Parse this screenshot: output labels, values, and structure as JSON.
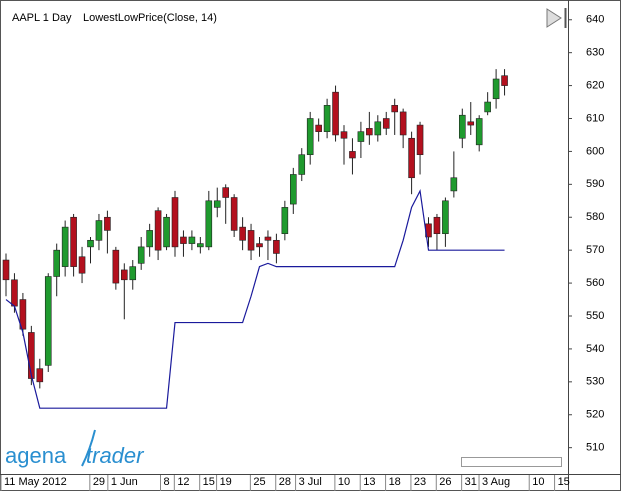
{
  "chart_data": {
    "type": "candlestick",
    "title": "AAPL 1 Day",
    "categories": [
      "11 May 2012",
      null,
      null,
      null,
      null,
      null,
      null,
      null,
      null,
      null,
      null,
      "29",
      null,
      null,
      "1 Jun",
      null,
      null,
      null,
      null,
      "8",
      null,
      "12",
      null,
      null,
      "15",
      null,
      "19",
      null,
      null,
      null,
      "25",
      null,
      null,
      "28",
      null,
      null,
      "3 Jul",
      null,
      null,
      null,
      "10",
      null,
      null,
      "13",
      null,
      null,
      "18",
      null,
      null,
      "23",
      null,
      null,
      "26",
      null,
      null,
      "31",
      null,
      null,
      "3 Aug",
      null,
      null,
      null,
      null,
      "10",
      null,
      null,
      "15"
    ],
    "open": [
      567,
      561,
      555,
      545,
      534,
      535,
      562,
      565,
      580,
      568,
      571,
      573,
      580,
      570,
      564,
      561,
      566,
      571,
      582,
      571,
      586,
      574,
      572,
      571,
      571,
      583,
      589,
      586,
      577,
      576,
      572,
      574,
      573,
      575,
      584,
      593,
      599,
      608,
      606,
      618,
      606,
      600,
      603,
      607,
      605,
      610,
      614,
      612,
      604,
      608,
      578,
      580,
      575,
      588,
      604,
      609,
      602,
      612,
      616,
      623,
      null,
      null,
      null,
      null,
      null,
      null,
      null
    ],
    "high": [
      569,
      563,
      557,
      547,
      537,
      563,
      572,
      579,
      581,
      571,
      574,
      581,
      582,
      571,
      566,
      567,
      574,
      578,
      583,
      581,
      588,
      576,
      576,
      574,
      588,
      589,
      590,
      587,
      580,
      578,
      574,
      576,
      575,
      585,
      595,
      601,
      612,
      610,
      616,
      620,
      608,
      604,
      609,
      612,
      611,
      612,
      616,
      613,
      606,
      609,
      580,
      581,
      586,
      600,
      613,
      615,
      611,
      618,
      625,
      625,
      null,
      null,
      null,
      null,
      null,
      null,
      null
    ],
    "low": [
      556,
      551,
      544,
      529,
      528,
      533,
      556,
      562,
      562,
      560,
      566,
      570,
      569,
      558,
      549,
      558,
      564,
      568,
      567,
      570,
      568,
      568,
      570,
      569,
      570,
      580,
      578,
      574,
      570,
      567,
      568,
      567,
      566,
      573,
      581,
      591,
      596,
      603,
      604,
      603,
      596,
      593,
      598,
      602,
      603,
      605,
      605,
      601,
      587,
      593,
      571,
      570,
      571,
      586,
      601,
      605,
      600,
      611,
      613,
      617,
      null,
      null,
      null,
      null,
      null,
      null,
      null
    ],
    "close": [
      561,
      553,
      546,
      531,
      530,
      562,
      570,
      577,
      565,
      563,
      573,
      579,
      576,
      560,
      561,
      565,
      571,
      576,
      570,
      580,
      571,
      572,
      574,
      572,
      585,
      585,
      586,
      576,
      573,
      570,
      571,
      573,
      569,
      583,
      593,
      599,
      610,
      606,
      614,
      605,
      604,
      598,
      606,
      605,
      609,
      607,
      612,
      605,
      592,
      599,
      574,
      575,
      585,
      592,
      611,
      608,
      610,
      615,
      622,
      620,
      null,
      null,
      null,
      null,
      null,
      null,
      null
    ],
    "up_color": "#1f9a2e",
    "down_color": "#b3101e",
    "indicator": {
      "name": "LowestLowPrice(Close, 14)",
      "color": "#1a1a9c",
      "values": [
        555,
        553,
        545,
        532,
        522,
        522,
        522,
        522,
        522,
        522,
        522,
        522,
        522,
        522,
        522,
        522,
        522,
        522,
        522,
        522,
        548,
        548,
        548,
        548,
        548,
        548,
        548,
        548,
        548,
        556,
        565,
        566,
        565,
        565,
        565,
        565,
        565,
        565,
        565,
        565,
        565,
        565,
        565,
        565,
        565,
        565,
        565,
        573,
        583,
        588,
        570,
        570,
        570,
        570,
        570,
        570,
        570,
        570,
        570,
        570,
        null,
        null,
        null,
        null,
        null,
        null,
        null
      ]
    },
    "ylim": [
      502,
      646
    ],
    "yticks": [
      510,
      520,
      530,
      540,
      550,
      560,
      570,
      580,
      590,
      600,
      610,
      620,
      630,
      640
    ],
    "logo": [
      "agena",
      "trader"
    ]
  }
}
